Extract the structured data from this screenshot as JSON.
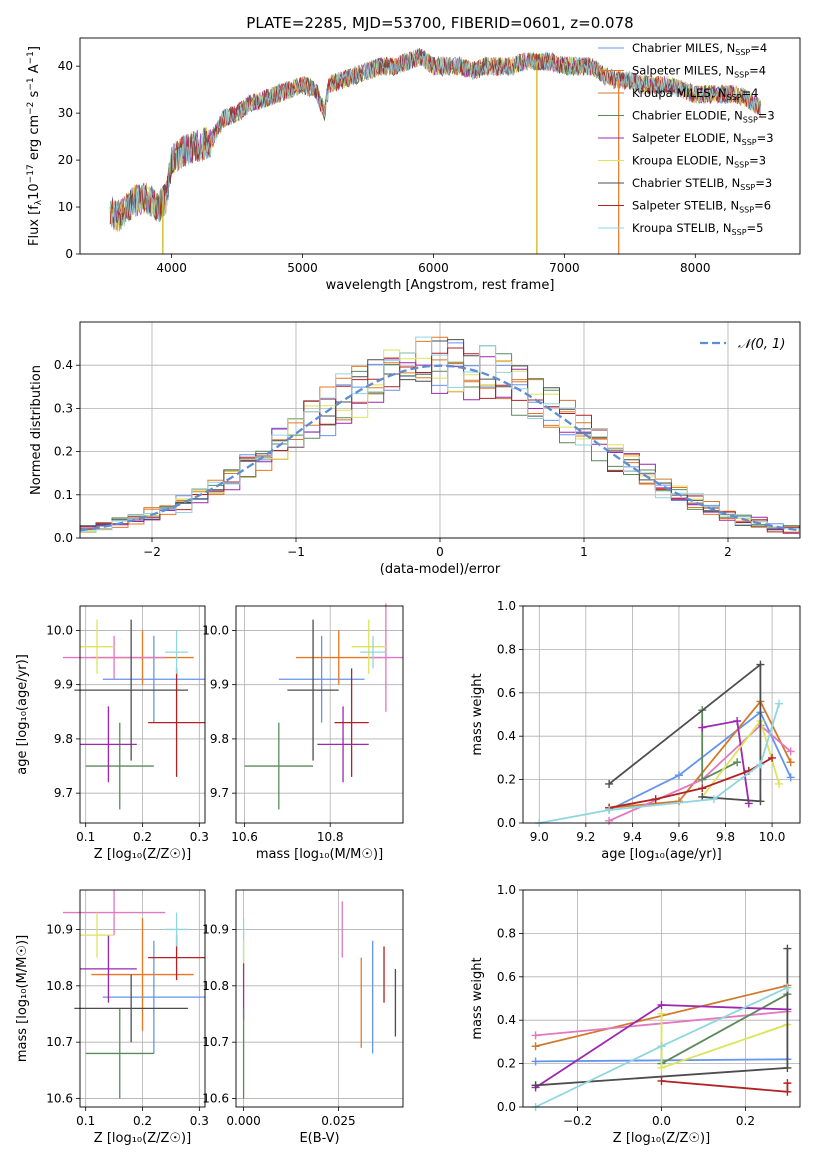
{
  "figure_title": "PLATE=2285, MJD=53700, FIBERID=0601, z=0.078",
  "series_colors": [
    "#1f77b4",
    "#ff7f0e",
    "#2ca02c",
    "#8e24aa",
    "#e377c2",
    "#d4e157",
    "#4a4a4a",
    "#b71c1c",
    "#80deea"
  ],
  "models": [
    {
      "name": "Chabrier MILES, N$_{SSP}$=4",
      "imf": "Chabrier",
      "lib": "MILES",
      "nssp": "4",
      "color": "#6495ed"
    },
    {
      "name": "Salpeter MILES, N$_{SSP}$=4",
      "imf": "Salpeter",
      "lib": "MILES",
      "nssp": "4",
      "color": "#e87722"
    },
    {
      "name": "Kroupa MILES, N$_{SSP}$=4",
      "imf": "Kroupa",
      "lib": "MILES",
      "nssp": "4",
      "color": "#d17a2c"
    },
    {
      "name": "Chabrier ELODIE, N$_{SSP}$=3",
      "imf": "Chabrier",
      "lib": "ELODIE",
      "nssp": "3",
      "color": "#5a8a5a"
    },
    {
      "name": "Salpeter ELODIE, N$_{SSP}$=3",
      "imf": "Salpeter",
      "lib": "ELODIE",
      "nssp": "3",
      "color": "#9c27b0"
    },
    {
      "name": "Kroupa ELODIE, N$_{SSP}$=3",
      "imf": "Kroupa",
      "lib": "ELODIE",
      "nssp": "3",
      "color": "#dde35a"
    },
    {
      "name": "Chabrier STELIB, N$_{SSP}$=3",
      "imf": "Chabrier",
      "lib": "STELIB",
      "nssp": "3",
      "color": "#4d4d4d"
    },
    {
      "name": "Salpeter STELIB, N$_{SSP}$=6",
      "imf": "Salpeter",
      "lib": "STELIB",
      "nssp": "6",
      "color": "#b22222"
    },
    {
      "name": "Kroupa STELIB, N$_{SSP}$=5",
      "imf": "Kroupa",
      "lib": "STELIB",
      "nssp": "5",
      "color": "#8fd6e0"
    }
  ],
  "chart_data": [
    {
      "id": "spectrum",
      "type": "line",
      "xlabel": "wavelength [Angstrom, rest frame]",
      "ylabel_main": "Flux [f",
      "ylabel_sub": "λ",
      "ylabel_rest": "10",
      "ylabel_exp": "−17",
      "ylabel_tail": " erg cm",
      "ylabel_exp2": "−2",
      "ylabel_tail2": " s",
      "ylabel_exp3": "−1",
      "ylabel_tail3": " A",
      "ylabel_exp4": "−1",
      "ylabel_end": "]",
      "xlim": [
        3300,
        8800
      ],
      "ylim": [
        0,
        46
      ],
      "xticks": [
        4000,
        5000,
        6000,
        7000,
        8000
      ],
      "yticks": [
        0,
        10,
        20,
        30,
        40
      ],
      "legend": "upper right",
      "shape_points": [
        [
          3530,
          9
        ],
        [
          3600,
          8
        ],
        [
          3700,
          11
        ],
        [
          3800,
          12
        ],
        [
          3900,
          10
        ],
        [
          3960,
          12
        ],
        [
          4000,
          20
        ],
        [
          4100,
          22
        ],
        [
          4200,
          23
        ],
        [
          4300,
          24
        ],
        [
          4400,
          29
        ],
        [
          4500,
          30
        ],
        [
          4600,
          32
        ],
        [
          4700,
          33
        ],
        [
          4800,
          34
        ],
        [
          4900,
          35
        ],
        [
          5000,
          36
        ],
        [
          5100,
          35
        ],
        [
          5170,
          30
        ],
        [
          5200,
          36
        ],
        [
          5300,
          37
        ],
        [
          5400,
          38
        ],
        [
          5500,
          39
        ],
        [
          5600,
          40
        ],
        [
          5700,
          40
        ],
        [
          5800,
          41
        ],
        [
          5900,
          42
        ],
        [
          6000,
          40
        ],
        [
          6100,
          40
        ],
        [
          6200,
          40
        ],
        [
          6300,
          39
        ],
        [
          6400,
          40
        ],
        [
          6500,
          40
        ],
        [
          6600,
          40
        ],
        [
          6700,
          41
        ],
        [
          6800,
          41
        ],
        [
          6900,
          41
        ],
        [
          7000,
          40
        ],
        [
          7100,
          40
        ],
        [
          7200,
          40
        ],
        [
          7300,
          38
        ],
        [
          7400,
          37
        ],
        [
          7500,
          37
        ],
        [
          7600,
          36
        ],
        [
          7700,
          36
        ],
        [
          7800,
          36
        ],
        [
          7900,
          35
        ],
        [
          8000,
          34
        ],
        [
          8100,
          34
        ],
        [
          8200,
          34
        ],
        [
          8300,
          34
        ],
        [
          8400,
          33
        ],
        [
          8500,
          31
        ]
      ],
      "dips": [
        [
          3933,
          0
        ],
        [
          6790,
          0
        ],
        [
          7415,
          0
        ]
      ]
    },
    {
      "id": "residuals",
      "type": "histogram",
      "xlabel": "(data-model)/error",
      "ylabel": "Normed distribution",
      "xlim": [
        -2.5,
        2.5
      ],
      "ylim": [
        0,
        0.5
      ],
      "xticks": [
        -2,
        -1,
        0,
        1,
        2
      ],
      "xtick_labels": [
        "−2",
        "−1",
        "0",
        "1",
        "2"
      ],
      "yticks": [
        0.0,
        0.1,
        0.2,
        0.3,
        0.4
      ],
      "ytick_labels": [
        "0.0",
        "0.1",
        "0.2",
        "0.3",
        "0.4"
      ],
      "bin_width": 0.111,
      "legend": "upper right",
      "reference_curve": {
        "name": "𝒩(0, 1)",
        "mean": 0,
        "sigma": 1,
        "color": "#5b8ed6"
      }
    },
    {
      "id": "age_vs_Z",
      "type": "scatter",
      "xlabel": "Z [log₁₀(Z/Z☉)]",
      "ylabel": "age  [log₁₀(age/yr)]",
      "xlim": [
        0.09,
        0.31
      ],
      "ylim": [
        9.645,
        10.045
      ],
      "xticks": [
        0.1,
        0.2,
        0.3
      ],
      "xtick_labels": [
        "0.1",
        "0.2",
        "0.3"
      ],
      "yticks": [
        9.7,
        9.8,
        9.9,
        10.0
      ],
      "ytick_labels": [
        "9.7",
        "9.8",
        "9.9",
        "10.0"
      ],
      "points": [
        {
          "x": 0.22,
          "y": 9.91,
          "xerr": 0.09,
          "yerr": 0.08,
          "color": "#6495ed"
        },
        {
          "x": 0.2,
          "y": 9.95,
          "xerr": 0.09,
          "yerr": 0.05,
          "color": "#e87722"
        },
        {
          "x": 0.15,
          "y": 9.95,
          "xerr": 0.09,
          "yerr": 0.04,
          "color": "#e377c2"
        },
        {
          "x": 0.16,
          "y": 9.75,
          "xerr": 0.06,
          "yerr": 0.08,
          "color": "#5a8a5a"
        },
        {
          "x": 0.14,
          "y": 9.79,
          "xerr": 0.05,
          "yerr": 0.07,
          "color": "#9c27b0"
        },
        {
          "x": 0.12,
          "y": 9.97,
          "xerr": 0.03,
          "yerr": 0.05,
          "color": "#dde35a"
        },
        {
          "x": 0.18,
          "y": 9.89,
          "xerr": 0.1,
          "yerr": 0.13,
          "color": "#4d4d4d"
        },
        {
          "x": 0.26,
          "y": 9.83,
          "xerr": 0.05,
          "yerr": 0.1,
          "color": "#b22222"
        },
        {
          "x": 0.26,
          "y": 9.96,
          "xerr": 0.02,
          "yerr": 0.04,
          "color": "#8fd6e0"
        }
      ]
    },
    {
      "id": "age_vs_mass",
      "type": "scatter",
      "xlabel": "mass [log₁₀(M/M☉)]",
      "ylabel": "",
      "xlim": [
        10.58,
        10.97
      ],
      "ylim": [
        9.645,
        10.045
      ],
      "xticks": [
        10.6,
        10.8
      ],
      "xtick_labels": [
        "10.6",
        "10.8"
      ],
      "yticks": [
        9.7,
        9.8,
        9.9,
        10.0
      ],
      "ytick_labels": [
        "9.7",
        "9.8",
        "9.9",
        "10.0"
      ],
      "points": [
        {
          "x": 10.78,
          "y": 9.91,
          "xerr": 0.1,
          "yerr": 0.08,
          "color": "#6495ed"
        },
        {
          "x": 10.82,
          "y": 9.95,
          "xerr": 0.1,
          "yerr": 0.05,
          "color": "#e87722"
        },
        {
          "x": 10.93,
          "y": 9.95,
          "xerr": 0.04,
          "yerr": 0.1,
          "color": "#e377c2"
        },
        {
          "x": 10.68,
          "y": 9.75,
          "xerr": 0.08,
          "yerr": 0.08,
          "color": "#5a8a5a"
        },
        {
          "x": 10.83,
          "y": 9.79,
          "xerr": 0.06,
          "yerr": 0.07,
          "color": "#9c27b0"
        },
        {
          "x": 10.89,
          "y": 9.97,
          "xerr": 0.04,
          "yerr": 0.05,
          "color": "#dde35a"
        },
        {
          "x": 10.76,
          "y": 9.89,
          "xerr": 0.06,
          "yerr": 0.13,
          "color": "#4d4d4d"
        },
        {
          "x": 10.85,
          "y": 9.83,
          "xerr": 0.04,
          "yerr": 0.1,
          "color": "#b22222"
        },
        {
          "x": 10.9,
          "y": 9.96,
          "xerr": 0.03,
          "yerr": 0.03,
          "color": "#8fd6e0"
        }
      ]
    },
    {
      "id": "weight_vs_age",
      "type": "line",
      "xlabel": "age  [log₁₀(age/yr)]",
      "ylabel": "mass weight",
      "xlim": [
        8.93,
        10.12
      ],
      "ylim": [
        0,
        1
      ],
      "xticks": [
        9.0,
        9.2,
        9.4,
        9.6,
        9.8,
        10.0
      ],
      "xtick_labels": [
        "9.0",
        "9.2",
        "9.4",
        "9.6",
        "9.8",
        "10.0"
      ],
      "yticks": [
        0.0,
        0.2,
        0.4,
        0.6,
        0.8,
        1.0
      ],
      "ytick_labels": [
        "0.0",
        "0.2",
        "0.4",
        "0.6",
        "0.8",
        "1.0"
      ],
      "series": [
        {
          "color": "#6495ed",
          "x": [
            9.3,
            9.6,
            9.95,
            10.08
          ],
          "y": [
            0.06,
            0.22,
            0.51,
            0.21
          ]
        },
        {
          "color": "#d17a2c",
          "x": [
            9.3,
            9.6,
            9.95,
            10.08
          ],
          "y": [
            0.07,
            0.1,
            0.56,
            0.28
          ]
        },
        {
          "color": "#e377c2",
          "x": [
            9.3,
            9.7,
            9.95,
            10.08
          ],
          "y": [
            0.01,
            0.2,
            0.45,
            0.33
          ]
        },
        {
          "color": "#5a8a5a",
          "x": [
            9.7,
            9.7,
            9.85
          ],
          "y": [
            0.52,
            0.2,
            0.28
          ]
        },
        {
          "color": "#9c27b0",
          "x": [
            9.7,
            9.85,
            9.9
          ],
          "y": [
            0.44,
            0.47,
            0.09
          ]
        },
        {
          "color": "#dde35a",
          "x": [
            9.7,
            9.95,
            10.03
          ],
          "y": [
            0.12,
            0.47,
            0.18
          ]
        },
        {
          "color": "#4d4d4d",
          "x": [
            9.3,
            9.95,
            9.95,
            9.7
          ],
          "y": [
            0.18,
            0.73,
            0.1,
            0.12
          ]
        },
        {
          "color": "#b22222",
          "x": [
            9.3,
            9.5,
            9.7,
            9.9,
            10.0
          ],
          "y": [
            0.07,
            0.11,
            0.16,
            0.24,
            0.3
          ]
        },
        {
          "color": "#8fd6e0",
          "x": [
            9.0,
            9.3,
            9.75,
            9.95,
            10.03
          ],
          "y": [
            0.0,
            0.06,
            0.11,
            0.27,
            0.55
          ]
        }
      ]
    },
    {
      "id": "mass_vs_Z",
      "type": "scatter",
      "xlabel": "Z [log₁₀(Z/Z☉)]",
      "ylabel": "mass [log₁₀(M/M☉)]",
      "xlim": [
        0.09,
        0.31
      ],
      "ylim": [
        10.585,
        10.97
      ],
      "xticks": [
        0.1,
        0.2,
        0.3
      ],
      "xtick_labels": [
        "0.1",
        "0.2",
        "0.3"
      ],
      "yticks": [
        10.6,
        10.7,
        10.8,
        10.9
      ],
      "ytick_labels": [
        "10.6",
        "10.7",
        "10.8",
        "10.9"
      ],
      "points": [
        {
          "x": 0.22,
          "y": 10.78,
          "xerr": 0.09,
          "yerr": 0.1,
          "color": "#6495ed"
        },
        {
          "x": 0.2,
          "y": 10.82,
          "xerr": 0.09,
          "yerr": 0.1,
          "color": "#e87722"
        },
        {
          "x": 0.15,
          "y": 10.93,
          "xerr": 0.09,
          "yerr": 0.04,
          "color": "#e377c2"
        },
        {
          "x": 0.16,
          "y": 10.68,
          "xerr": 0.06,
          "yerr": 0.08,
          "color": "#5a8a5a"
        },
        {
          "x": 0.14,
          "y": 10.83,
          "xerr": 0.05,
          "yerr": 0.06,
          "color": "#9c27b0"
        },
        {
          "x": 0.12,
          "y": 10.89,
          "xerr": 0.03,
          "yerr": 0.04,
          "color": "#dde35a"
        },
        {
          "x": 0.18,
          "y": 10.76,
          "xerr": 0.1,
          "yerr": 0.06,
          "color": "#4d4d4d"
        },
        {
          "x": 0.26,
          "y": 10.85,
          "xerr": 0.05,
          "yerr": 0.04,
          "color": "#b22222"
        },
        {
          "x": 0.26,
          "y": 10.9,
          "xerr": 0.02,
          "yerr": 0.03,
          "color": "#8fd6e0"
        }
      ]
    },
    {
      "id": "mass_vs_EBV",
      "type": "scatter",
      "xlabel": "E(B-V)",
      "ylabel": "",
      "xlim": [
        -0.002,
        0.042
      ],
      "ylim": [
        10.585,
        10.97
      ],
      "xticks": [
        0.0,
        0.025
      ],
      "xtick_labels": [
        "0.000",
        "0.025"
      ],
      "yticks": [
        10.6,
        10.7,
        10.8,
        10.9
      ],
      "ytick_labels": [
        "10.6",
        "10.7",
        "10.8",
        "10.9"
      ],
      "points": [
        {
          "x": 0.0,
          "y": 10.88,
          "xerr": 0,
          "yerr": 0.04,
          "color": "#8fd6e0"
        },
        {
          "x": 0.0,
          "y": 10.85,
          "xerr": 0,
          "yerr": 0.03,
          "color": "#dde35a"
        },
        {
          "x": 0.0,
          "y": 10.79,
          "xerr": 0,
          "yerr": 0.05,
          "color": "#9c27b0"
        },
        {
          "x": 0.0,
          "y": 10.68,
          "xerr": 0,
          "yerr": 0.08,
          "color": "#5a8a5a"
        },
        {
          "x": 0.026,
          "y": 10.9,
          "xerr": 0,
          "yerr": 0.05,
          "color": "#e377c2"
        },
        {
          "x": 0.031,
          "y": 10.77,
          "xerr": 0,
          "yerr": 0.08,
          "color": "#e87722"
        },
        {
          "x": 0.034,
          "y": 10.78,
          "xerr": 0,
          "yerr": 0.1,
          "color": "#6495ed"
        },
        {
          "x": 0.037,
          "y": 10.82,
          "xerr": 0,
          "yerr": 0.05,
          "color": "#b22222"
        },
        {
          "x": 0.04,
          "y": 10.77,
          "xerr": 0,
          "yerr": 0.06,
          "color": "#4d4d4d"
        }
      ]
    },
    {
      "id": "weight_vs_Z",
      "type": "line",
      "xlabel": "Z [log₁₀(Z/Z☉)]",
      "ylabel": "mass weight",
      "xlim": [
        -0.33,
        0.33
      ],
      "ylim": [
        0,
        1
      ],
      "xticks": [
        -0.2,
        0.0,
        0.2
      ],
      "xtick_labels": [
        "−0.2",
        "0.0",
        "0.2"
      ],
      "yticks": [
        0.0,
        0.2,
        0.4,
        0.6,
        0.8,
        1.0
      ],
      "ytick_labels": [
        "0.0",
        "0.2",
        "0.4",
        "0.6",
        "0.8",
        "1.0"
      ],
      "series": [
        {
          "color": "#6495ed",
          "x": [
            -0.3,
            0.3
          ],
          "y": [
            0.21,
            0.22
          ]
        },
        {
          "color": "#d17a2c",
          "x": [
            -0.3,
            0.3
          ],
          "y": [
            0.28,
            0.56
          ]
        },
        {
          "color": "#e377c2",
          "x": [
            -0.3,
            0.3
          ],
          "y": [
            0.33,
            0.44
          ]
        },
        {
          "color": "#5a8a5a",
          "x": [
            0.0,
            0.0,
            0.3
          ],
          "y": [
            0.28,
            0.2,
            0.52
          ]
        },
        {
          "color": "#9c27b0",
          "x": [
            -0.3,
            0.0,
            0.3
          ],
          "y": [
            0.09,
            0.47,
            0.45
          ]
        },
        {
          "color": "#dde35a",
          "x": [
            0.0,
            0.0,
            0.3
          ],
          "y": [
            0.43,
            0.18,
            0.38
          ]
        },
        {
          "color": "#4d4d4d",
          "x": [
            -0.3,
            0.3,
            0.3
          ],
          "y": [
            0.1,
            0.18,
            0.73
          ]
        },
        {
          "color": "#b22222",
          "x": [
            0.0,
            0.3,
            0.3
          ],
          "y": [
            0.12,
            0.07,
            0.11
          ]
        },
        {
          "color": "#8fd6e0",
          "x": [
            -0.3,
            0.0,
            0.3
          ],
          "y": [
            0.0,
            0.28,
            0.55
          ]
        }
      ]
    }
  ]
}
